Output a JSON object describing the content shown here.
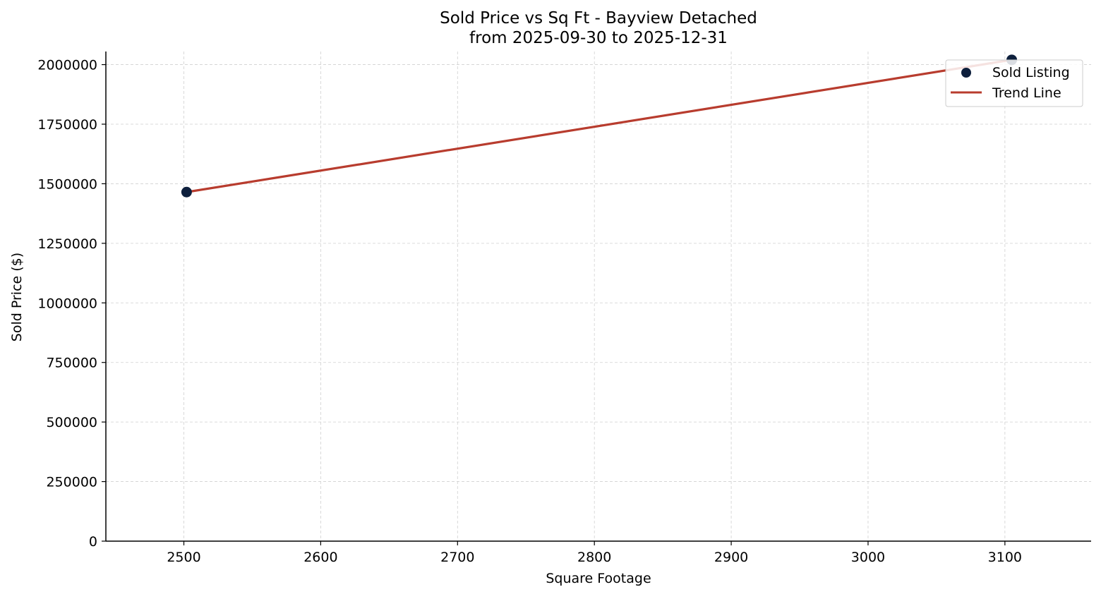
{
  "chart_data": {
    "type": "scatter",
    "title": "Sold Price vs Sq Ft - Bayview Detached",
    "subtitle": "from 2025-09-30 to 2025-12-31",
    "xlabel": "Square Footage",
    "ylabel": "Sold Price ($)",
    "xlim": [
      2443,
      3163
    ],
    "ylim": [
      0,
      2055000
    ],
    "x_ticks": [
      2500,
      2600,
      2700,
      2800,
      2900,
      3000,
      3100
    ],
    "y_ticks": [
      0,
      250000,
      500000,
      750000,
      1000000,
      1250000,
      1500000,
      1750000,
      2000000
    ],
    "grid": true,
    "legend": {
      "position": "top-right",
      "entries": [
        {
          "label": "Sold Listing",
          "kind": "marker",
          "color": "#0d1f3c"
        },
        {
          "label": "Trend Line",
          "kind": "line",
          "color": "#b83c2e"
        }
      ]
    },
    "series": [
      {
        "name": "Sold Listing",
        "kind": "scatter",
        "color": "#0d1f3c",
        "points": [
          {
            "x": 2502,
            "y": 1465000
          },
          {
            "x": 3105,
            "y": 2020000
          }
        ]
      },
      {
        "name": "Trend Line",
        "kind": "line",
        "color": "#b83c2e",
        "points": [
          {
            "x": 2502,
            "y": 1465000
          },
          {
            "x": 3105,
            "y": 2020000
          }
        ]
      }
    ]
  }
}
